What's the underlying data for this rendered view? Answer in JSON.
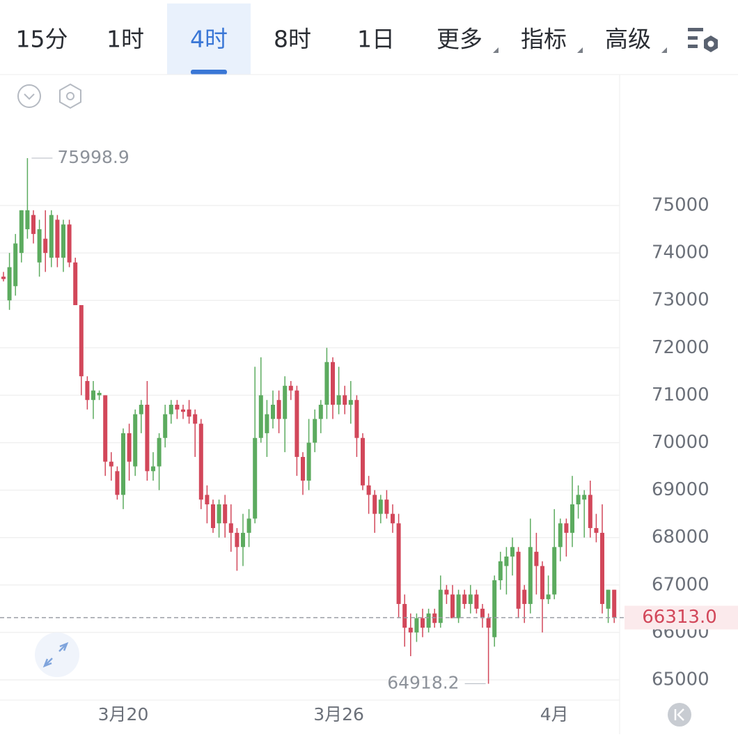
{
  "tabs": [
    "15分",
    "1时",
    "4时",
    "8时",
    "1日",
    "更多",
    "指标",
    "高级"
  ],
  "selected_tab": 2,
  "chart_data": {
    "type": "candlestick",
    "categories": [
      null,
      null,
      null,
      null,
      null,
      null,
      null,
      null,
      null,
      null,
      null,
      null,
      null,
      null,
      null,
      null,
      null,
      null,
      null,
      null,
      "3月20",
      null,
      null,
      null,
      null,
      null,
      null,
      null,
      null,
      null,
      null,
      null,
      null,
      null,
      null,
      null,
      null,
      null,
      null,
      null,
      null,
      null,
      null,
      null,
      null,
      null,
      null,
      null,
      null,
      null,
      null,
      null,
      null,
      null,
      null,
      null,
      "3月26",
      null,
      null,
      null,
      null,
      null,
      null,
      null,
      null,
      null,
      null,
      null,
      null,
      null,
      null,
      null,
      null,
      null,
      null,
      null,
      null,
      null,
      null,
      null,
      null,
      null,
      null,
      null,
      null,
      null,
      null,
      null,
      null,
      null,
      null,
      null,
      "4月",
      null,
      null,
      null,
      null,
      null,
      null,
      null,
      null,
      null,
      null
    ],
    "open": [
      73500,
      73000,
      73300,
      74000,
      74500,
      74800,
      73800,
      74300,
      73900,
      74700,
      73900,
      74600,
      73800,
      72900,
      71300,
      70900,
      71000,
      71000,
      69600,
      69400,
      68900,
      70200,
      69500,
      70600,
      70800,
      69400,
      69500,
      70100,
      70600,
      70800,
      70700,
      70700,
      70600,
      70400,
      68900,
      68700,
      68300,
      68700,
      68300,
      68100,
      67800,
      68100,
      68400,
      70100,
      70200,
      70500,
      70900,
      70500,
      71200,
      71100,
      69700,
      69200,
      70000,
      70500,
      70800,
      71700,
      70800,
      71000,
      70800,
      70900,
      70100,
      69100,
      68900,
      68500,
      68800,
      68500,
      68300,
      66600,
      66100,
      66000,
      66300,
      66100,
      66400,
      66200,
      66900,
      66800,
      66300,
      66800,
      66600,
      66800,
      66500,
      66300,
      65900,
      67100,
      67400,
      67600,
      67700,
      66900,
      66600,
      67700,
      67400,
      66700,
      66800,
      67800,
      68300,
      68100,
      68700,
      68800,
      68900,
      68200,
      68100,
      66500,
      66900
    ],
    "high": [
      73600,
      74000,
      74400,
      74900,
      75998.9,
      74900,
      74700,
      74900,
      74900,
      74800,
      74700,
      74700,
      73900,
      72900,
      71400,
      71300,
      71100,
      71000,
      69800,
      69500,
      70300,
      70400,
      70700,
      70900,
      71300,
      69800,
      70200,
      70800,
      70900,
      70900,
      70800,
      70900,
      70700,
      70500,
      69100,
      68800,
      68800,
      68900,
      68700,
      68200,
      68500,
      68600,
      71600,
      71800,
      70900,
      71100,
      71100,
      71400,
      71300,
      71200,
      69800,
      70500,
      70700,
      70900,
      72000,
      71800,
      71600,
      71200,
      71300,
      71000,
      70200,
      69300,
      69000,
      68900,
      69000,
      68700,
      68500,
      66800,
      66400,
      66400,
      66500,
      66500,
      66500,
      67200,
      67000,
      67000,
      66900,
      66900,
      67000,
      66900,
      66600,
      66400,
      67200,
      67700,
      67800,
      68000,
      67800,
      67000,
      68400,
      68100,
      67500,
      67200,
      68600,
      68400,
      68400,
      69300,
      69100,
      69000,
      69200,
      68500,
      68700,
      66900,
      66900
    ],
    "low": [
      73400,
      72800,
      73100,
      73800,
      74300,
      74200,
      73500,
      73600,
      73700,
      73700,
      73600,
      73700,
      72900,
      71000,
      70700,
      70500,
      70900,
      69300,
      69200,
      68800,
      68600,
      69200,
      69300,
      70200,
      69200,
      69200,
      69000,
      69900,
      70400,
      70500,
      70500,
      70400,
      69700,
      68600,
      68300,
      68100,
      68000,
      68000,
      67700,
      67300,
      67400,
      67800,
      68300,
      70000,
      69700,
      70300,
      70200,
      69800,
      70900,
      69300,
      68900,
      69000,
      69800,
      70200,
      70500,
      70500,
      70600,
      70600,
      70400,
      69700,
      69000,
      68500,
      68100,
      68300,
      68400,
      68100,
      66300,
      65700,
      65500,
      65800,
      65900,
      66000,
      66100,
      66100,
      66600,
      66300,
      66200,
      66500,
      66400,
      66400,
      66100,
      64918.2,
      65700,
      66900,
      66800,
      67200,
      66300,
      66200,
      66400,
      66800,
      66000,
      66600,
      66700,
      67500,
      67600,
      67800,
      68400,
      68000,
      68000,
      67900,
      66400,
      66200,
      66200
    ],
    "close": [
      73450,
      73700,
      74200,
      74900,
      74900,
      74400,
      74500,
      74000,
      74800,
      73900,
      74600,
      73800,
      72900,
      71400,
      70900,
      71100,
      71050,
      69600,
      69500,
      68900,
      70200,
      69600,
      70600,
      70800,
      69400,
      69500,
      70100,
      70600,
      70800,
      70700,
      70650,
      70550,
      70400,
      68800,
      68700,
      68200,
      68700,
      68300,
      68100,
      67800,
      68100,
      68400,
      70100,
      71000,
      70600,
      70800,
      70500,
      71200,
      71100,
      69700,
      69200,
      70000,
      70500,
      70800,
      71700,
      70800,
      71000,
      70800,
      70900,
      70100,
      69100,
      68900,
      68500,
      68800,
      68500,
      68300,
      66600,
      66100,
      66000,
      66300,
      66100,
      66400,
      66200,
      66900,
      66800,
      66300,
      66800,
      66600,
      66800,
      66500,
      66300,
      66100,
      67100,
      67500,
      67600,
      67800,
      66500,
      66600,
      67800,
      67400,
      66700,
      66800,
      67800,
      68300,
      68100,
      68700,
      68900,
      68900,
      68200,
      68100,
      66600,
      66900,
      66313
    ],
    "up_color": "#5cab5f",
    "down_color": "#d2475a",
    "ylim": [
      64574,
      77761
    ],
    "yticks": [
      65000,
      66000,
      67000,
      68000,
      69000,
      70000,
      71000,
      72000,
      73000,
      74000,
      75000
    ],
    "grid": true,
    "last_price": {
      "value": 66313,
      "label": "66313.0"
    },
    "high_mark_index": 4,
    "low_mark_index": 81
  }
}
